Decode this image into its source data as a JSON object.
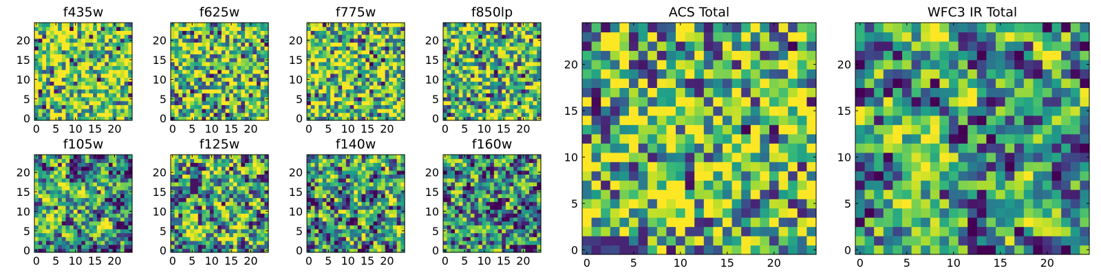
{
  "chart_data": [
    {
      "type": "heatmap",
      "title": "f435w",
      "xticks": [
        0,
        5,
        10,
        15,
        20
      ],
      "yticks": [
        0,
        5,
        10,
        15,
        20
      ],
      "xlim": [
        -0.5,
        24.5
      ],
      "ylim": [
        -0.5,
        24.5
      ],
      "grid_size": 25,
      "colormap": "viridis",
      "pattern": {
        "seed": 11,
        "smooth": 0.0,
        "bias": 0.2
      }
    },
    {
      "type": "heatmap",
      "title": "f625w",
      "xticks": [
        0,
        5,
        10,
        15,
        20
      ],
      "yticks": [
        0,
        5,
        10,
        15,
        20
      ],
      "xlim": [
        -0.5,
        24.5
      ],
      "ylim": [
        -0.5,
        24.5
      ],
      "grid_size": 25,
      "colormap": "viridis",
      "pattern": {
        "seed": 23,
        "smooth": 0.0,
        "bias": 0.15
      }
    },
    {
      "type": "heatmap",
      "title": "f775w",
      "xticks": [
        0,
        5,
        10,
        15,
        20
      ],
      "yticks": [
        0,
        5,
        10,
        15,
        20
      ],
      "xlim": [
        -0.5,
        24.5
      ],
      "ylim": [
        -0.5,
        24.5
      ],
      "grid_size": 25,
      "colormap": "viridis",
      "pattern": {
        "seed": 37,
        "smooth": 0.0,
        "bias": 0.15
      }
    },
    {
      "type": "heatmap",
      "title": "f850lp",
      "xticks": [
        0,
        5,
        10,
        15,
        20
      ],
      "yticks": [
        0,
        5,
        10,
        15,
        20
      ],
      "xlim": [
        -0.5,
        24.5
      ],
      "ylim": [
        -0.5,
        24.5
      ],
      "grid_size": 25,
      "colormap": "viridis",
      "pattern": {
        "seed": 41,
        "smooth": 0.0,
        "bias": 0.1
      }
    },
    {
      "type": "heatmap",
      "title": "f105w",
      "xticks": [
        0,
        5,
        10,
        15,
        20
      ],
      "yticks": [
        0,
        5,
        10,
        15,
        20
      ],
      "xlim": [
        -0.5,
        24.5
      ],
      "ylim": [
        -0.5,
        24.5
      ],
      "grid_size": 25,
      "colormap": "viridis",
      "pattern": {
        "seed": 53,
        "smooth": 0.55,
        "bias": 0.0
      }
    },
    {
      "type": "heatmap",
      "title": "f125w",
      "xticks": [
        0,
        5,
        10,
        15,
        20
      ],
      "yticks": [
        0,
        5,
        10,
        15,
        20
      ],
      "xlim": [
        -0.5,
        24.5
      ],
      "ylim": [
        -0.5,
        24.5
      ],
      "grid_size": 25,
      "colormap": "viridis",
      "pattern": {
        "seed": 67,
        "smooth": 0.5,
        "bias": 0.05
      }
    },
    {
      "type": "heatmap",
      "title": "f140w",
      "xticks": [
        0,
        5,
        10,
        15,
        20
      ],
      "yticks": [
        0,
        5,
        10,
        15,
        20
      ],
      "xlim": [
        -0.5,
        24.5
      ],
      "ylim": [
        -0.5,
        24.5
      ],
      "grid_size": 25,
      "colormap": "viridis",
      "pattern": {
        "seed": 79,
        "smooth": 0.4,
        "bias": 0.0
      }
    },
    {
      "type": "heatmap",
      "title": "f160w",
      "xticks": [
        0,
        5,
        10,
        15,
        20
      ],
      "yticks": [
        0,
        5,
        10,
        15,
        20
      ],
      "xlim": [
        -0.5,
        24.5
      ],
      "ylim": [
        -0.5,
        24.5
      ],
      "grid_size": 25,
      "colormap": "viridis",
      "pattern": {
        "seed": 83,
        "smooth": 0.35,
        "bias": -0.05
      }
    },
    {
      "type": "heatmap",
      "title": "ACS Total",
      "xticks": [
        0,
        5,
        10,
        15,
        20
      ],
      "yticks": [
        0,
        5,
        10,
        15,
        20
      ],
      "xlim": [
        -0.5,
        24.5
      ],
      "ylim": [
        -0.5,
        24.5
      ],
      "grid_size": 25,
      "colormap": "viridis",
      "pattern": {
        "seed": 97,
        "smooth": 0.3,
        "bias": 0.1
      }
    },
    {
      "type": "heatmap",
      "title": "WFC3 IR Total",
      "xticks": [
        0,
        5,
        10,
        15,
        20
      ],
      "yticks": [
        0,
        5,
        10,
        15,
        20
      ],
      "xlim": [
        -0.5,
        24.5
      ],
      "ylim": [
        -0.5,
        24.5
      ],
      "grid_size": 25,
      "colormap": "viridis",
      "pattern": {
        "seed": 101,
        "smooth": 0.55,
        "bias": 0.0
      }
    }
  ]
}
